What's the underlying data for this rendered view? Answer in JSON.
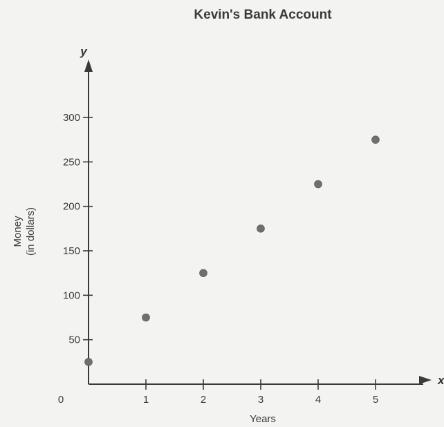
{
  "chart_data": {
    "type": "scatter",
    "title": "Kevin's Bank Account",
    "xlabel": "Years",
    "ylabel_line1": "Money",
    "ylabel_line2": "(in dollars)",
    "x_axis_letter": "x",
    "y_axis_letter": "y",
    "origin_label": "0",
    "xlim": [
      0,
      5
    ],
    "ylim": [
      0,
      300
    ],
    "x_ticks": [
      1,
      2,
      3,
      4,
      5
    ],
    "y_ticks": [
      50,
      100,
      150,
      200,
      250,
      300
    ],
    "points": [
      {
        "x": 0,
        "y": 25
      },
      {
        "x": 1,
        "y": 75
      },
      {
        "x": 2,
        "y": 125
      },
      {
        "x": 3,
        "y": 175
      },
      {
        "x": 4,
        "y": 225
      },
      {
        "x": 5,
        "y": 275
      }
    ],
    "grid": false,
    "colors": {
      "point": "#6f6f6f",
      "axis": "#3a3a3a"
    }
  }
}
